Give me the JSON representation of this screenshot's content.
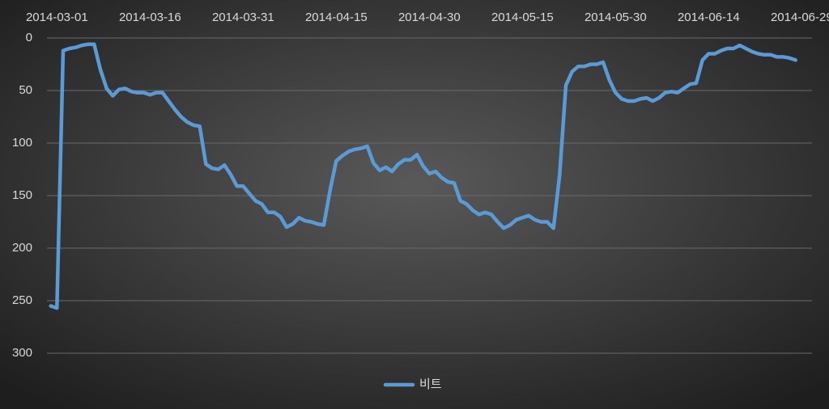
{
  "chart_data": {
    "type": "line",
    "y_inverted": true,
    "grid": true,
    "legend": "bottom",
    "x": [
      "2014-02-28",
      "2014-03-01",
      "2014-03-02",
      "2014-03-03",
      "2014-03-04",
      "2014-03-05",
      "2014-03-06",
      "2014-03-07",
      "2014-03-08",
      "2014-03-09",
      "2014-03-10",
      "2014-03-11",
      "2014-03-12",
      "2014-03-13",
      "2014-03-14",
      "2014-03-15",
      "2014-03-16",
      "2014-03-17",
      "2014-03-18",
      "2014-03-19",
      "2014-03-20",
      "2014-03-21",
      "2014-03-22",
      "2014-03-23",
      "2014-03-24",
      "2014-03-25",
      "2014-03-26",
      "2014-03-27",
      "2014-03-28",
      "2014-03-29",
      "2014-03-30",
      "2014-03-31",
      "2014-04-01",
      "2014-04-02",
      "2014-04-03",
      "2014-04-04",
      "2014-04-05",
      "2014-04-06",
      "2014-04-07",
      "2014-04-08",
      "2014-04-09",
      "2014-04-10",
      "2014-04-11",
      "2014-04-12",
      "2014-04-13",
      "2014-04-14",
      "2014-04-15",
      "2014-04-16",
      "2014-04-17",
      "2014-04-18",
      "2014-04-19",
      "2014-04-20",
      "2014-04-21",
      "2014-04-22",
      "2014-04-23",
      "2014-04-24",
      "2014-04-25",
      "2014-04-26",
      "2014-04-27",
      "2014-04-28",
      "2014-04-29",
      "2014-04-30",
      "2014-05-01",
      "2014-05-02",
      "2014-05-03",
      "2014-05-04",
      "2014-05-05",
      "2014-05-06",
      "2014-05-07",
      "2014-05-08",
      "2014-05-09",
      "2014-05-10",
      "2014-05-11",
      "2014-05-12",
      "2014-05-13",
      "2014-05-14",
      "2014-05-15",
      "2014-05-16",
      "2014-05-17",
      "2014-05-18",
      "2014-05-19",
      "2014-05-20",
      "2014-05-21",
      "2014-05-22",
      "2014-05-23",
      "2014-05-24",
      "2014-05-25",
      "2014-05-26",
      "2014-05-27",
      "2014-05-28",
      "2014-05-29",
      "2014-05-30",
      "2014-05-31",
      "2014-06-01",
      "2014-06-02",
      "2014-06-03",
      "2014-06-04",
      "2014-06-05",
      "2014-06-06",
      "2014-06-07",
      "2014-06-08",
      "2014-06-09",
      "2014-06-10",
      "2014-06-11",
      "2014-06-12",
      "2014-06-13",
      "2014-06-14",
      "2014-06-15",
      "2014-06-16",
      "2014-06-17",
      "2014-06-18",
      "2014-06-19",
      "2014-06-20",
      "2014-06-21",
      "2014-06-22",
      "2014-06-23",
      "2014-06-24",
      "2014-06-25",
      "2014-06-26",
      "2014-06-27",
      "2014-06-28"
    ],
    "series": [
      {
        "name": "비트",
        "color": "#5b9bd5",
        "values": [
          255,
          257,
          12,
          10,
          9,
          7,
          6,
          6,
          30,
          48,
          55,
          49,
          48,
          51,
          52,
          52,
          54,
          52,
          52,
          60,
          68,
          75,
          80,
          83,
          84,
          120,
          124,
          125,
          121,
          130,
          141,
          141,
          148,
          155,
          158,
          166,
          166,
          170,
          180,
          177,
          171,
          174,
          175,
          177,
          178,
          145,
          117,
          112,
          108,
          106,
          105,
          103,
          119,
          126,
          123,
          127,
          120,
          116,
          116,
          111,
          122,
          129,
          127,
          133,
          137,
          138,
          155,
          158,
          164,
          168,
          166,
          168,
          175,
          181,
          178,
          173,
          171,
          169,
          173,
          175,
          175,
          181,
          130,
          45,
          32,
          27,
          27,
          25,
          25,
          23,
          40,
          52,
          58,
          60,
          60,
          58,
          57,
          60,
          57,
          52,
          51,
          52,
          48,
          44,
          43,
          21,
          15,
          15,
          12,
          10,
          10,
          7,
          10,
          13,
          15,
          16,
          16,
          18,
          18,
          19,
          21
        ]
      }
    ],
    "xlim": [
      "2014-02-27",
      "2014-06-30"
    ],
    "xticks": [
      "2014-03-01",
      "2014-03-16",
      "2014-03-31",
      "2014-04-15",
      "2014-04-30",
      "2014-05-15",
      "2014-05-30",
      "2014-06-14",
      "2014-06-29"
    ],
    "ylim": [
      0,
      300
    ],
    "yticks": [
      0,
      50,
      100,
      150,
      200,
      250,
      300
    ]
  }
}
